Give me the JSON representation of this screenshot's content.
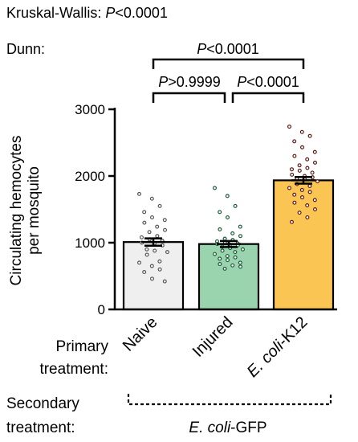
{
  "chart_data": {
    "type": "bar",
    "ylabel_line1": "Circulating hemocytes",
    "ylabel_line2": "per mosquito",
    "ylim": [
      0,
      3000
    ],
    "yticks": [
      0,
      1000,
      2000,
      3000
    ],
    "ytick_labels": [
      "0",
      "1000",
      "2000",
      "3000"
    ],
    "categories": [
      "Naive",
      "Injured",
      "E. coli-K12"
    ],
    "category_label_parts": [
      {
        "italic": "",
        "normal": "Naive"
      },
      {
        "italic": "",
        "normal": "Injured"
      },
      {
        "italic": "E. coli",
        "normal": "-K12"
      }
    ],
    "values": [
      1010,
      980,
      1935
    ],
    "sem": [
      55,
      45,
      50
    ],
    "bar_colors": [
      "#efefef",
      "#99d4ae",
      "#fbc553"
    ],
    "dot_colors": [
      "#555555",
      "#1c5a37",
      "#5a1c14"
    ],
    "points": [
      [
        1730,
        1660,
        1550,
        1460,
        1380,
        1340,
        1300,
        1240,
        1190,
        1160,
        1100,
        1080,
        1050,
        1030,
        1000,
        990,
        960,
        900,
        880,
        860,
        820,
        720,
        700,
        650,
        600,
        560,
        460,
        420
      ],
      [
        1820,
        1700,
        1550,
        1460,
        1380,
        1240,
        1200,
        1140,
        1100,
        1060,
        1040,
        1020,
        1000,
        990,
        980,
        970,
        960,
        940,
        920,
        900,
        880,
        860,
        830,
        800,
        780,
        760,
        740,
        700,
        680,
        660,
        640,
        610
      ],
      [
        2740,
        2660,
        2600,
        2520,
        2430,
        2360,
        2300,
        2250,
        2200,
        2160,
        2120,
        2100,
        2080,
        2050,
        2020,
        2000,
        1980,
        1960,
        1950,
        1920,
        1880,
        1850,
        1820,
        1790,
        1760,
        1720,
        1680,
        1640,
        1600,
        1560,
        1500,
        1450,
        1380,
        1310
      ]
    ]
  },
  "stats": {
    "kw_label": "Kruskal-Wallis:",
    "kw_p_italic": "P",
    "kw_p_rest": "<0.0001",
    "dunn_label": "Dunn:",
    "comparisons": [
      {
        "p_italic": "P",
        "p_rest": "<0.0001"
      },
      {
        "p_italic": "P",
        "p_rest": ">0.9999"
      },
      {
        "p_italic": "P",
        "p_rest": "<0.0001"
      }
    ]
  },
  "treatment": {
    "primary_line1": "Primary",
    "primary_line2": "treatment:",
    "secondary_line1": "Secondary",
    "secondary_line2": "treatment:",
    "secondary_italic": "E. coli",
    "secondary_normal": "-GFP"
  }
}
